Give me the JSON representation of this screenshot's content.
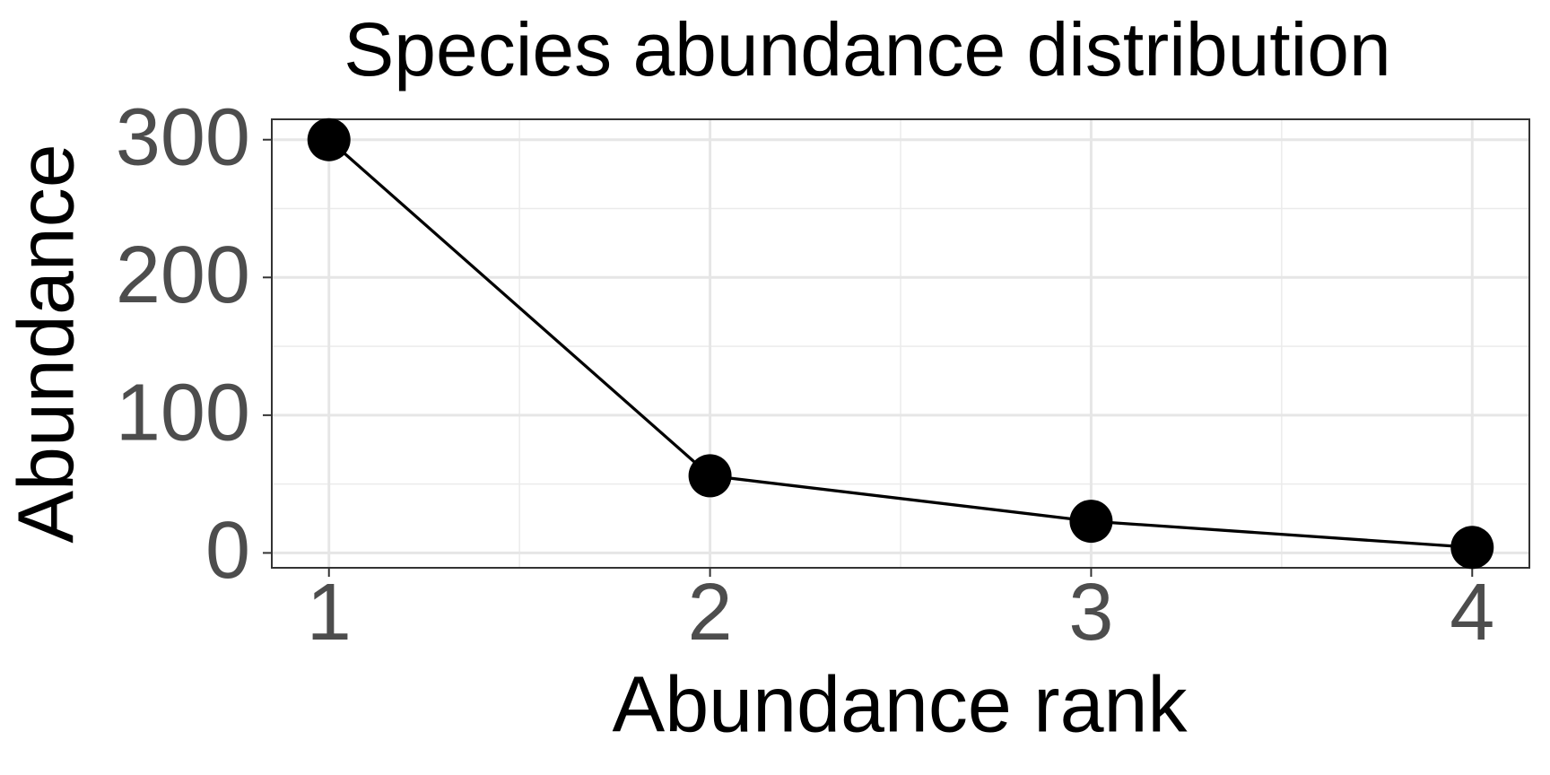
{
  "chart_data": {
    "type": "line",
    "title": "Species abundance distribution",
    "x_label": "Abundance rank",
    "y_label": "Abundance",
    "x": [
      1,
      2,
      3,
      4
    ],
    "values": [
      300,
      56,
      23,
      4
    ],
    "color": "#000000",
    "xlim": [
      0.85,
      4.15
    ],
    "xticks": [
      1,
      2,
      3,
      4
    ],
    "ylim": [
      -10.8,
      314.8
    ],
    "yticks": [
      0,
      100,
      200,
      300
    ],
    "grid": true
  }
}
